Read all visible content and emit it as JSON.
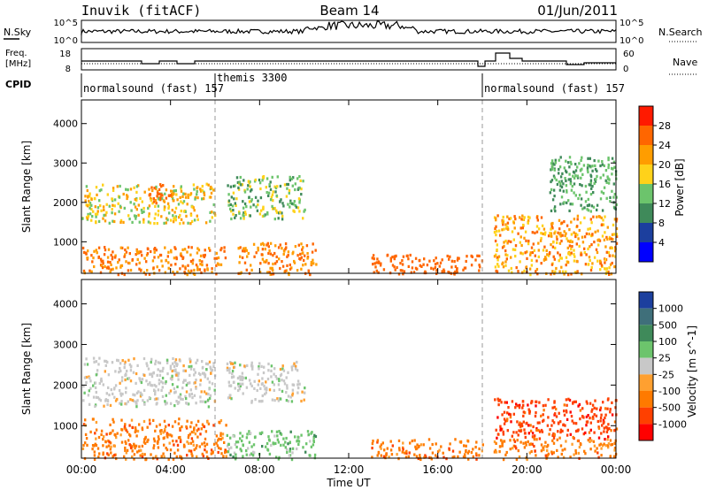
{
  "header": {
    "station": "Inuvik (fitACF)",
    "beam": "Beam 14",
    "date": "01/Jun/2011"
  },
  "top_panels": {
    "nsky_label": "N.Sky",
    "nsky_ticks": [
      "10^5",
      "10^0"
    ],
    "nsearch_label": "N.Search",
    "nsearch_ticks": [
      "10^5",
      "10^0"
    ],
    "freq_label_1": "Freq.",
    "freq_label_2": "[MHz]",
    "freq_ticks": [
      "18",
      "8"
    ],
    "nave_label": "Nave",
    "nave_ticks": [
      "60",
      "0"
    ],
    "cpid_label": "CPID",
    "cpid_segments": [
      {
        "name": "normalsound (fast) 157",
        "start_hour": 0
      },
      {
        "name": "themis 3300",
        "start_hour": 6
      },
      {
        "name": "normalsound (fast) 157",
        "start_hour": 18
      }
    ]
  },
  "x_axis": {
    "label": "Time UT",
    "ticks": [
      "00:00",
      "04:00",
      "08:00",
      "12:00",
      "16:00",
      "20:00",
      "00:00"
    ]
  },
  "colors": {
    "power": [
      "#0000ff",
      "#1c3f9e",
      "#3f8a5a",
      "#6cc46c",
      "#ffd21a",
      "#ff9d00",
      "#ff6600",
      "#ff1a00"
    ],
    "velocity": [
      "#1c3f9e",
      "#3f6f7a",
      "#3f8a5a",
      "#6cc46c",
      "#c8c8c8",
      "#ffa030",
      "#ff7a00",
      "#ff4000",
      "#ff0000"
    ]
  },
  "chart_data": [
    {
      "type": "heatmap",
      "title": "",
      "xlabel": "Time UT",
      "ylabel": "Slant Range [km]",
      "x_range_hours": [
        0,
        24
      ],
      "ylim": [
        200,
        4600
      ],
      "y_ticks": [
        "1000",
        "2000",
        "3000",
        "4000"
      ],
      "colorbar": {
        "label": "Power [dB]",
        "tick_labels": [
          "4",
          "8",
          "12",
          "16",
          "20",
          "24",
          "28"
        ]
      },
      "regions": [
        {
          "t0": 0.0,
          "t1": 6.0,
          "r0": 1500,
          "r1": 2500,
          "dominant": "power 12-24 dB"
        },
        {
          "t0": 3.0,
          "t1": 4.0,
          "r0": 2000,
          "r1": 2500,
          "dominant": "power 24-28 dB"
        },
        {
          "t0": 0.0,
          "t1": 6.5,
          "r0": 200,
          "r1": 900,
          "dominant": "power 20-28 dB"
        },
        {
          "t0": 6.5,
          "t1": 10.0,
          "r0": 1600,
          "r1": 2700,
          "dominant": "power 8-20 dB"
        },
        {
          "t0": 7.0,
          "t1": 10.5,
          "r0": 200,
          "r1": 1000,
          "dominant": "power 20-28 dB"
        },
        {
          "t0": 13.0,
          "t1": 18.0,
          "r0": 200,
          "r1": 700,
          "dominant": "power 24-28 dB"
        },
        {
          "t0": 18.5,
          "t1": 24.0,
          "r0": 200,
          "r1": 1700,
          "dominant": "power 16-28 dB"
        },
        {
          "t0": 21.0,
          "t1": 24.0,
          "r0": 1800,
          "r1": 3200,
          "dominant": "power 8-16 dB"
        }
      ]
    },
    {
      "type": "heatmap",
      "title": "",
      "xlabel": "Time UT",
      "ylabel": "Slant Range [km]",
      "x_range_hours": [
        0,
        24
      ],
      "ylim": [
        200,
        4600
      ],
      "y_ticks": [
        "1000",
        "2000",
        "3000",
        "4000"
      ],
      "colorbar": {
        "label": "Velocity [m s^-1]",
        "tick_labels": [
          "1000",
          "500",
          "100",
          "25",
          "-25",
          "-100",
          "-500",
          "-1000"
        ]
      },
      "regions": [
        {
          "t0": 0.0,
          "t1": 6.0,
          "r0": 1500,
          "r1": 2700,
          "dominant": "velocity -25 to 25"
        },
        {
          "t0": 0.0,
          "t1": 6.5,
          "r0": 200,
          "r1": 1200,
          "dominant": "velocity -100 to -500"
        },
        {
          "t0": 6.5,
          "t1": 10.0,
          "r0": 1600,
          "r1": 2600,
          "dominant": "velocity -25 to 25"
        },
        {
          "t0": 6.5,
          "t1": 10.5,
          "r0": 200,
          "r1": 900,
          "dominant": "velocity 25 to 100"
        },
        {
          "t0": 13.0,
          "t1": 18.0,
          "r0": 200,
          "r1": 700,
          "dominant": "velocity -100 to -500"
        },
        {
          "t0": 18.5,
          "t1": 24.0,
          "r0": 700,
          "r1": 1700,
          "dominant": "velocity -500 to -1000"
        },
        {
          "t0": 18.5,
          "t1": 24.0,
          "r0": 200,
          "r1": 700,
          "dominant": "velocity -100 to -500"
        }
      ]
    }
  ]
}
